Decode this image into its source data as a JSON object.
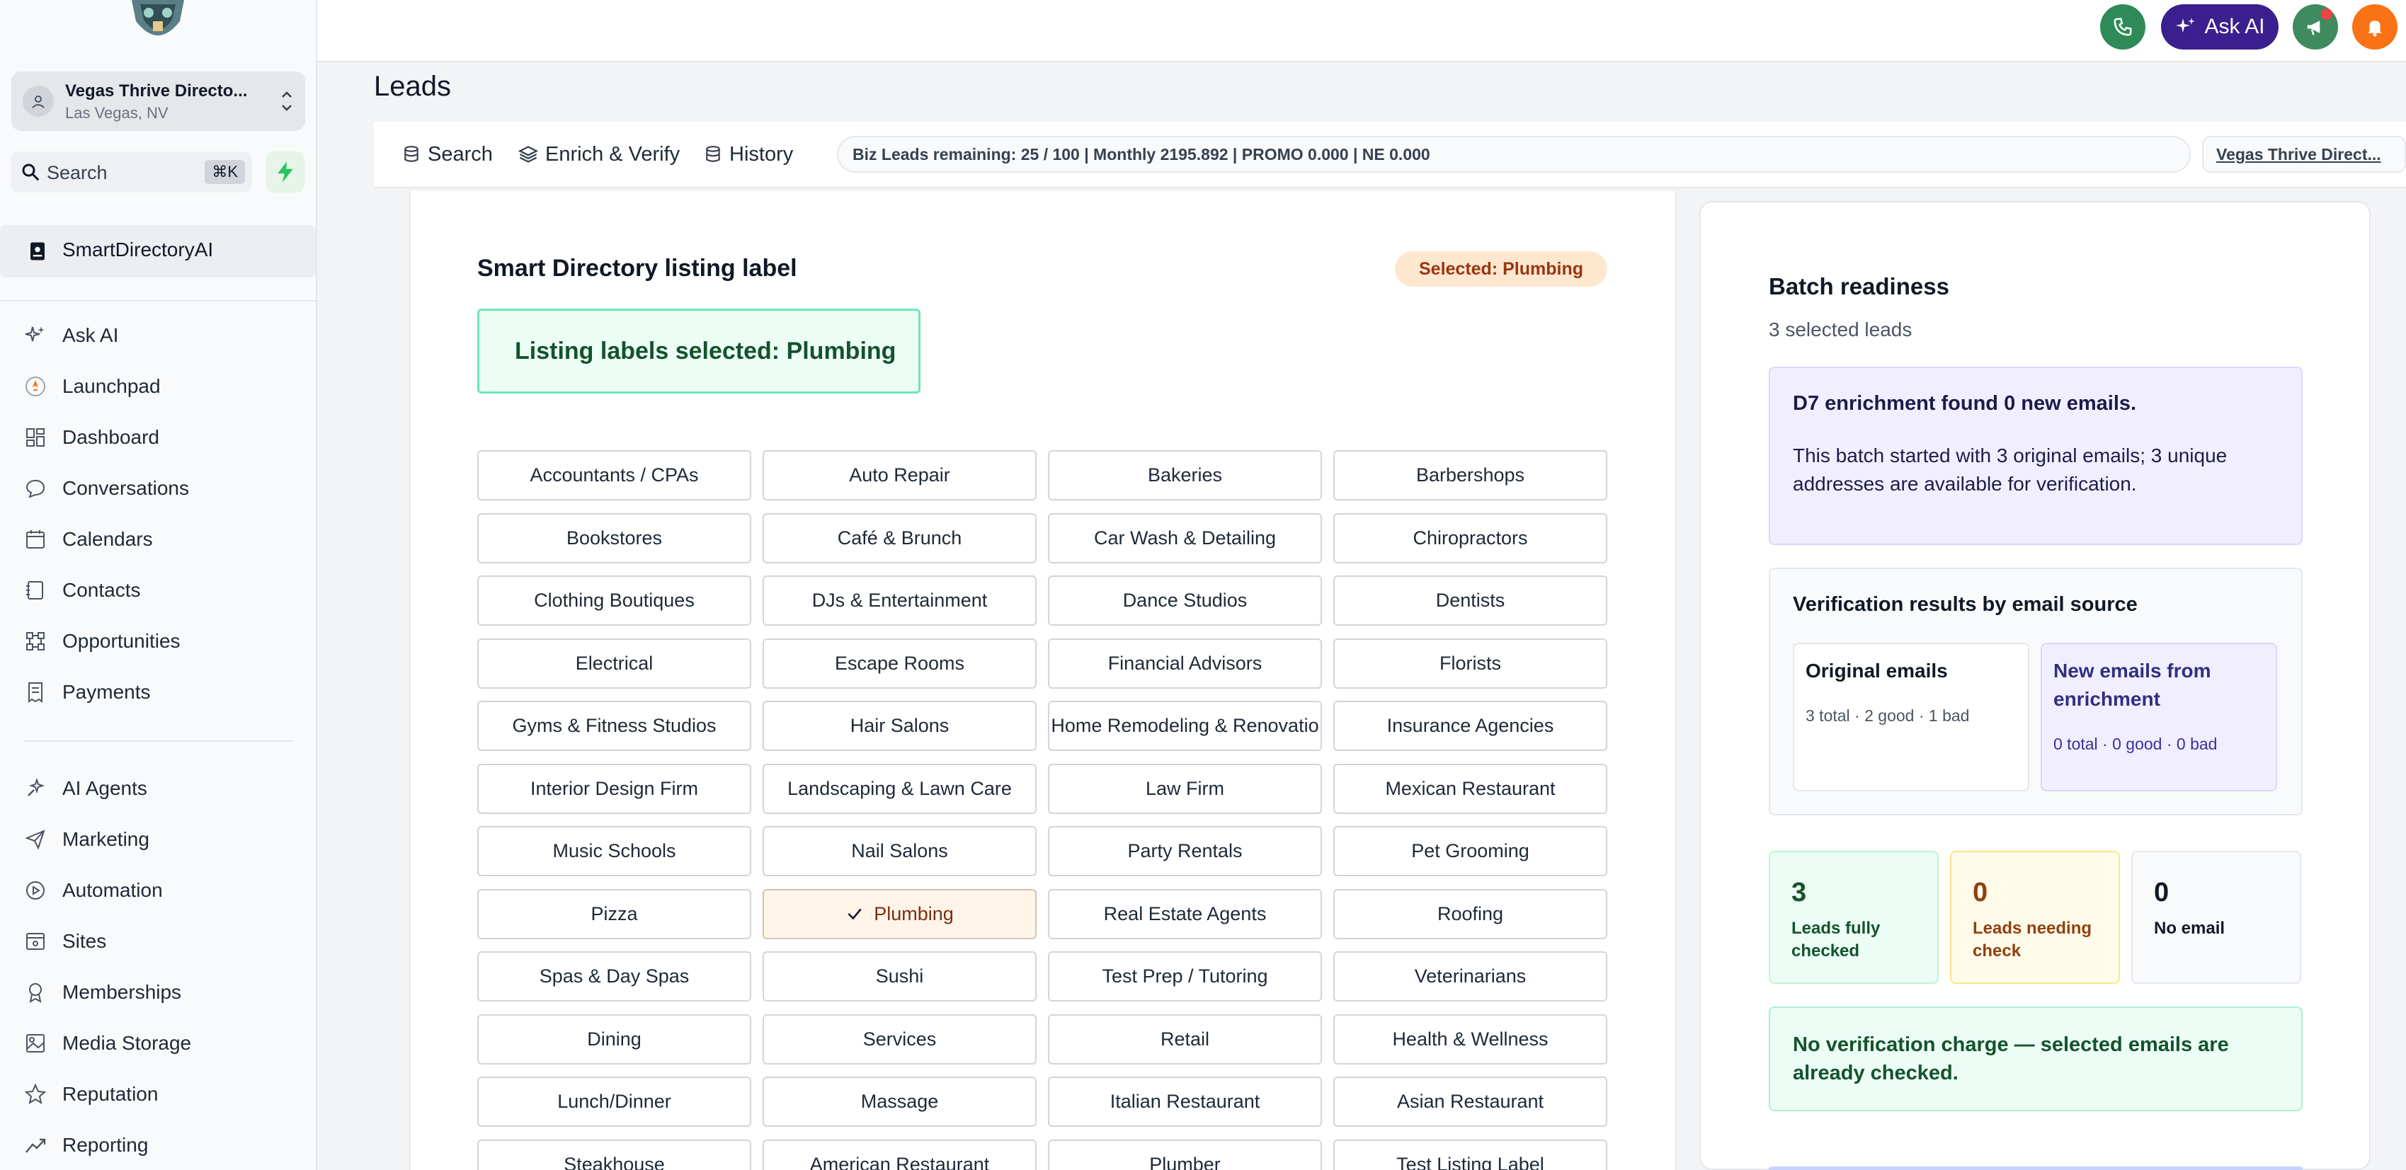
{
  "sidebar": {
    "location": {
      "name": "Vegas Thrive Directo...",
      "city": "Las Vegas, NV"
    },
    "search": {
      "label": "Search",
      "shortcut": "⌘K"
    },
    "active_item": "SmartDirectoryAI",
    "nav_group_1": [
      {
        "label": "Ask AI",
        "icon": "sparkles-icon"
      },
      {
        "label": "Launchpad",
        "icon": "rocket-icon"
      },
      {
        "label": "Dashboard",
        "icon": "grid-icon"
      },
      {
        "label": "Conversations",
        "icon": "chat-icon"
      },
      {
        "label": "Calendars",
        "icon": "calendar-icon"
      },
      {
        "label": "Contacts",
        "icon": "contacts-icon"
      },
      {
        "label": "Opportunities",
        "icon": "network-icon"
      },
      {
        "label": "Payments",
        "icon": "receipt-icon"
      }
    ],
    "nav_group_2": [
      {
        "label": "AI Agents",
        "icon": "agent-icon"
      },
      {
        "label": "Marketing",
        "icon": "send-icon"
      },
      {
        "label": "Automation",
        "icon": "automation-icon"
      },
      {
        "label": "Sites",
        "icon": "sites-icon"
      },
      {
        "label": "Memberships",
        "icon": "membership-icon"
      },
      {
        "label": "Media Storage",
        "icon": "image-icon"
      },
      {
        "label": "Reputation",
        "icon": "star-icon"
      },
      {
        "label": "Reporting",
        "icon": "chart-line-icon"
      }
    ]
  },
  "topbar": {
    "ask_ai": "Ask AI"
  },
  "page": {
    "title": "Leads"
  },
  "tabs": [
    {
      "label": "Search"
    },
    {
      "label": "Enrich & Verify"
    },
    {
      "label": "History"
    }
  ],
  "credits_text": "Biz Leads remaining: 25 / 100 | Monthly 2195.892 | PROMO 0.000 | NE 0.000",
  "directory_link": "Vegas Thrive Direct...",
  "listing": {
    "title": "Smart Directory listing label",
    "selected_pill": "Selected: Plumbing",
    "selected_box": "Listing labels selected: Plumbing",
    "selected_category": "Plumbing",
    "categories": [
      "Accountants / CPAs",
      "Auto Repair",
      "Bakeries",
      "Barbershops",
      "Bookstores",
      "Café & Brunch",
      "Car Wash & Detailing",
      "Chiropractors",
      "Clothing Boutiques",
      "DJs & Entertainment",
      "Dance Studios",
      "Dentists",
      "Electrical",
      "Escape Rooms",
      "Financial Advisors",
      "Florists",
      "Gyms & Fitness Studios",
      "Hair Salons",
      "Home Remodeling & Renovatio",
      "Insurance Agencies",
      "Interior Design Firm",
      "Landscaping & Lawn Care",
      "Law Firm",
      "Mexican Restaurant",
      "Music Schools",
      "Nail Salons",
      "Party Rentals",
      "Pet Grooming",
      "Pizza",
      "Plumbing",
      "Real Estate Agents",
      "Roofing",
      "Spas & Day Spas",
      "Sushi",
      "Test Prep / Tutoring",
      "Veterinarians",
      "Dining",
      "Services",
      "Retail",
      "Health & Wellness",
      "Lunch/Dinner",
      "Massage",
      "Italian Restaurant",
      "Asian Restaurant",
      "Steakhouse",
      "American Restaurant",
      "Plumber",
      "Test Listing Label"
    ]
  },
  "batch": {
    "title": "Batch readiness",
    "subtitle": "3 selected leads",
    "d7_title": "D7 enrichment found 0 new emails.",
    "d7_body": "This batch started with 3 original emails; 3 unique addresses are available for verification.",
    "verification_title": "Verification results by email source",
    "original": {
      "title": "Original emails",
      "value": "3 total · 2 good · 1 bad"
    },
    "enriched": {
      "title": "New emails from enrichment",
      "value": "0 total · 0 good · 0 bad"
    },
    "stats": [
      {
        "num": "3",
        "label": "Leads fully checked"
      },
      {
        "num": "0",
        "label": "Leads needing check"
      },
      {
        "num": "0",
        "label": "No email"
      }
    ],
    "charge_note": "No verification charge — selected emails are already checked."
  }
}
